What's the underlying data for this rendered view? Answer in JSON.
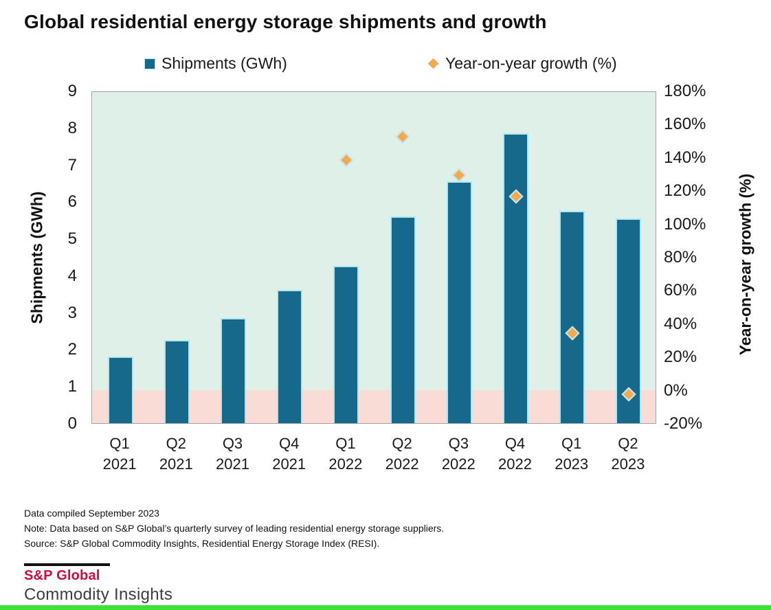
{
  "title": "Global residential energy storage shipments and growth",
  "legend": [
    {
      "label": "Shipments (GWh)",
      "marker": "square-icon"
    },
    {
      "label": "Year-on-year growth (%)",
      "marker": "diamond-icon"
    }
  ],
  "chart_data": {
    "type": "bar",
    "categories": [
      "Q1 2021",
      "Q2 2021",
      "Q3 2021",
      "Q4 2021",
      "Q1 2022",
      "Q2 2022",
      "Q3 2022",
      "Q4 2022",
      "Q1 2023",
      "Q2 2023"
    ],
    "series": [
      {
        "name": "Shipments (GWh)",
        "type": "bar",
        "axis": "left",
        "values": [
          1.8,
          2.25,
          2.85,
          3.6,
          4.25,
          5.6,
          6.55,
          7.85,
          5.75,
          5.55
        ]
      },
      {
        "name": "Year-on-year growth (%)",
        "type": "scatter",
        "axis": "right",
        "values": [
          null,
          null,
          null,
          null,
          139,
          153,
          130,
          117,
          35,
          -2
        ]
      }
    ],
    "title": "Global residential energy storage shipments and growth",
    "left_axis": {
      "label": "Shipments (GWh)",
      "min": 0,
      "max": 9,
      "step": 1,
      "suffix": ""
    },
    "right_axis": {
      "label": "Year-on-year growth (%)",
      "min": -20,
      "max": 180,
      "step": 20,
      "suffix": "%"
    },
    "grid": false,
    "legend_position": "top",
    "background_note": "plot background is mint green above the 0% growth level and pale pink below it"
  },
  "footnotes": [
    "Data compiled September 2023",
    "Note: Data based on S&P Global’s quarterly survey of leading residential energy storage suppliers.",
    "Source: S&P Global Commodity Insights, Residential Energy Storage Index (RESI)."
  ],
  "logo": {
    "brand": "S&P Global",
    "division": "Commodity Insights"
  },
  "colors": {
    "bar_fill": "#16698a",
    "bar_edge": "#b0e6f2",
    "diamond_fill": "#f5a94f",
    "diamond_edge": "#c2eaf3",
    "plot_bg_positive": "#dff0e8",
    "plot_bg_negative": "#fadcd6",
    "plot_border": "#a3a3a3",
    "brand_red": "#d6093b",
    "bottom_bar_green": "#3fe03a",
    "text": "#111111"
  }
}
